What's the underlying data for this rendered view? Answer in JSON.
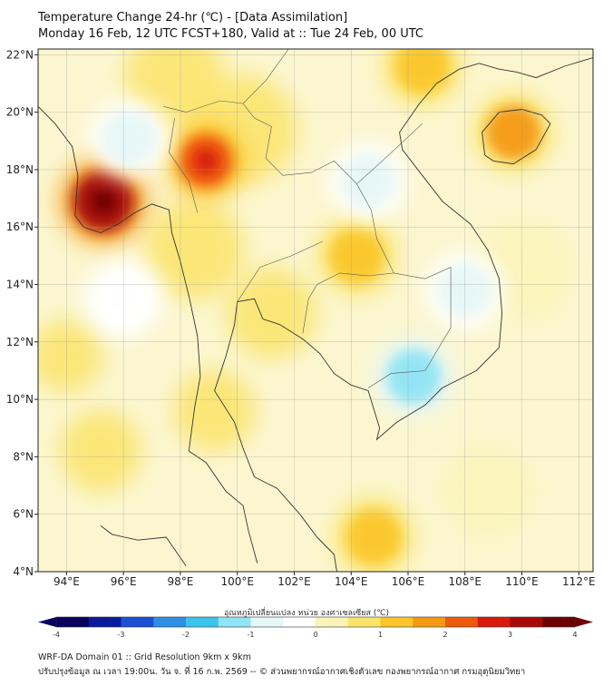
{
  "header": {
    "title": "Temperature Change 24-hr (℃) - [Data Assimilation]",
    "subtitle": "Monday 16 Feb, 12 UTC FCST+180, Valid at :: Tue 24 Feb, 00 UTC"
  },
  "chart_data": {
    "type": "heatmap",
    "title": "Temperature Change 24-hr (℃) - [Data Assimilation]",
    "subtitle": "Monday 16 Feb, 12 UTC FCST+180, Valid at :: Tue 24 Feb, 00 UTC",
    "xlim": [
      93,
      112.5
    ],
    "ylim": [
      4,
      22.2
    ],
    "x_ticks": [
      94,
      96,
      98,
      100,
      102,
      104,
      106,
      108,
      110,
      112
    ],
    "x_tick_labels": [
      "94°E",
      "96°E",
      "98°E",
      "100°E",
      "102°E",
      "104°E",
      "106°E",
      "108°E",
      "110°E",
      "112°E"
    ],
    "y_ticks": [
      4,
      6,
      8,
      10,
      12,
      14,
      16,
      18,
      20,
      22
    ],
    "y_tick_labels": [
      "4°N",
      "6°N",
      "8°N",
      "10°N",
      "12°N",
      "14°N",
      "16°N",
      "18°N",
      "20°N",
      "22°N"
    ],
    "grid": true,
    "colorbar": {
      "label": "อุณหภูมิเปลี่ยนแปลง หน่วย องศาเซลเซียส (℃)",
      "min": -4,
      "max": 4,
      "ticks": [
        -4,
        -3,
        -2,
        -1,
        0,
        1,
        2,
        3,
        4
      ],
      "tick_labels": [
        "-4",
        "-3",
        "-2",
        "-1",
        "0",
        "1",
        "2",
        "3",
        "4"
      ],
      "colors": [
        "#08005e",
        "#0a1a9c",
        "#1a4fd6",
        "#2f8fe6",
        "#3cc4ec",
        "#8fe4f5",
        "#e6f7f7",
        "#ffffff",
        "#fbf4b8",
        "#fbe46a",
        "#fbc62a",
        "#f59a12",
        "#ee5a0c",
        "#d81a0a",
        "#a80808",
        "#6e0000"
      ]
    },
    "field_features": [
      {
        "name": "warm-core-myanmar-coast",
        "lon": 95.3,
        "lat": 16.9,
        "value": 3.2
      },
      {
        "name": "warm-north-thailand",
        "lon": 98.9,
        "lat": 18.3,
        "value": 2.3
      },
      {
        "name": "warm-hainan",
        "lon": 109.7,
        "lat": 19.3,
        "value": 1.8
      },
      {
        "name": "warm-northeast-thailand",
        "lon": 104.2,
        "lat": 15.0,
        "value": 1.4
      },
      {
        "name": "warm-north-vietnam",
        "lon": 106.5,
        "lat": 21.6,
        "value": 1.4
      },
      {
        "name": "warm-south-sea",
        "lon": 104.8,
        "lat": 5.2,
        "value": 1.2
      },
      {
        "name": "cool-vietnam-coast",
        "lon": 108.0,
        "lat": 13.8,
        "value": -1.0
      },
      {
        "name": "cool-gulf-mekong",
        "lon": 106.2,
        "lat": 10.8,
        "value": -1.3
      },
      {
        "name": "cool-laos",
        "lon": 104.6,
        "lat": 17.6,
        "value": -0.8
      },
      {
        "name": "cool-bay-of-bengal",
        "lon": 96.2,
        "lat": 19.1,
        "value": -0.9
      },
      {
        "name": "cool-andaman",
        "lon": 96.0,
        "lat": 13.5,
        "value": -0.5
      }
    ]
  },
  "footer": {
    "line1": "WRF-DA Domain 01 :: Grid Resolution 9km x 9km",
    "line2": "ปรับปรุงข้อมูล ณ เวลา 19:00น. วัน จ. ที่ 16 ก.พ. 2569 -- © ส่วนพยากรณ์อากาศเชิงตัวเลข กองพยากรณ์อากาศ กรมอุตุนิยมวิทยา"
  }
}
